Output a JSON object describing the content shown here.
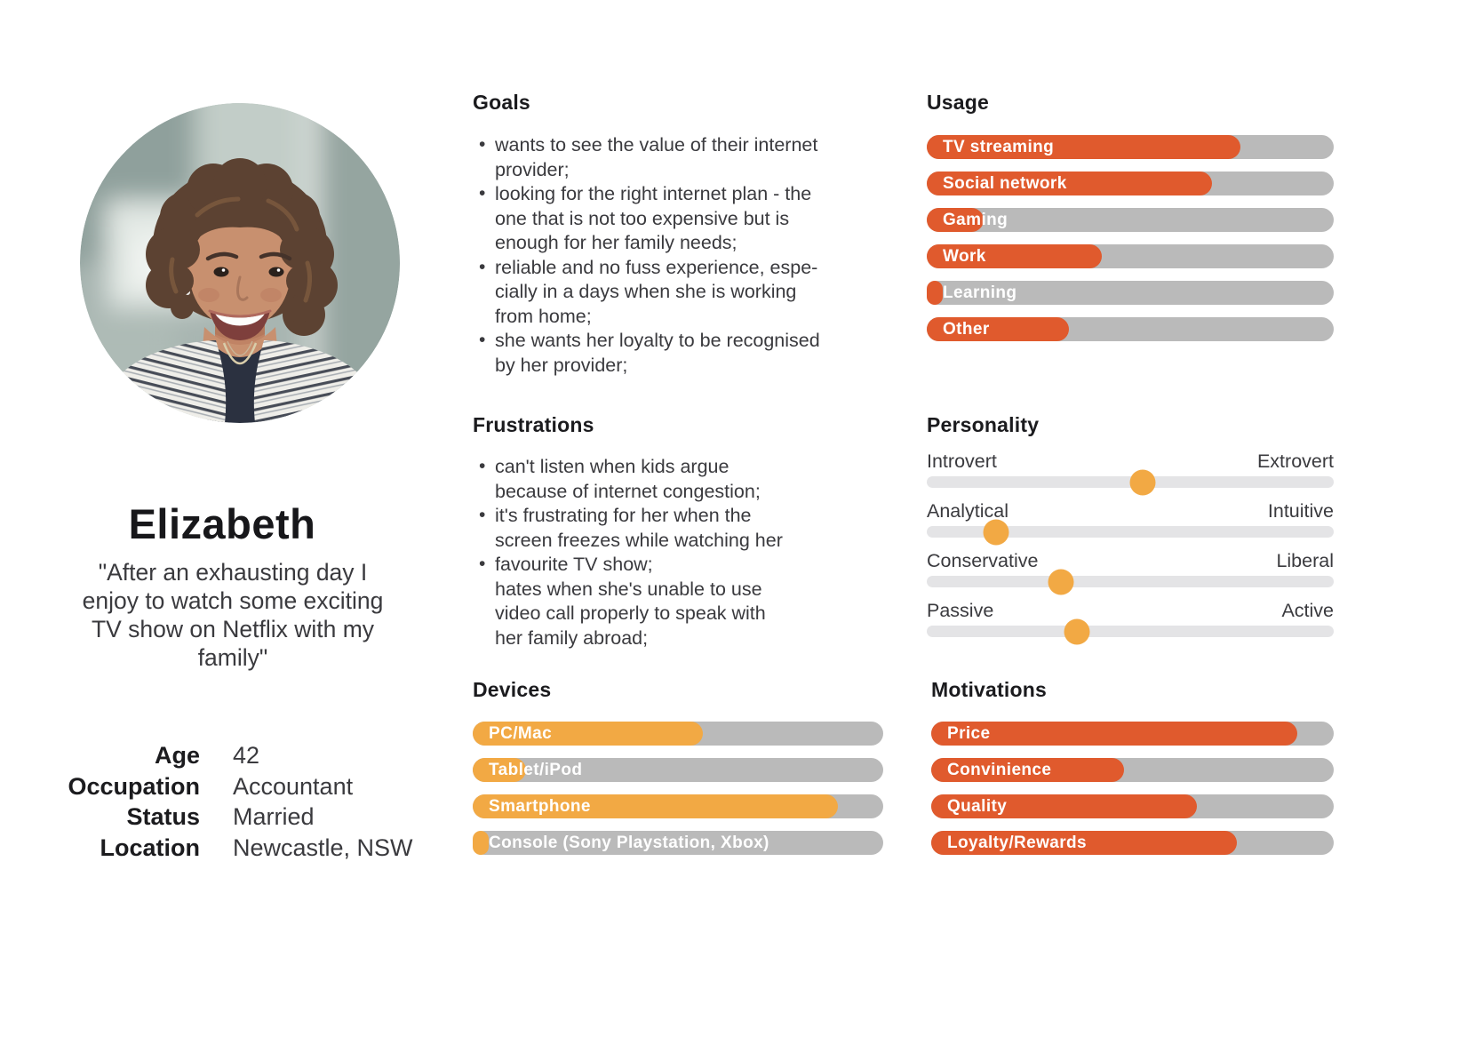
{
  "colors": {
    "accent_orange": "#E05A2D",
    "accent_amber": "#F2A944",
    "bar_track": "#BABABA",
    "slider_track": "#E4E4E6",
    "text": "#333336"
  },
  "persona": {
    "name": "Elizabeth",
    "quote": "\"After an exhausting day I\nenjoy to watch some exciting\nTV show on Netflix with my\nfamily\"",
    "details": [
      {
        "label": "Age",
        "value": "42"
      },
      {
        "label": "Occupation",
        "value": "Accountant"
      },
      {
        "label": "Status",
        "value": "Married"
      },
      {
        "label": "Location",
        "value": "Newcastle, NSW"
      }
    ]
  },
  "goals": {
    "title": "Goals",
    "items": [
      "wants to see the value of their internet\nprovider;",
      "looking for the right internet plan - the\none that is not too expensive but is\nenough for her family needs;",
      "reliable and no fuss experience, espe-\ncially in a days when she is working\nfrom home;",
      "she wants her loyalty to be recognised\nby her provider;"
    ]
  },
  "frustrations": {
    "title": "Frustrations",
    "items": [
      "can't listen when kids argue\nbecause of internet congestion;",
      "it's frustrating for her when the\nscreen freezes while watching her",
      "favourite TV show;\nhates when she's unable to use\nvideo call properly to speak with\nher family abroad;"
    ]
  },
  "usage": {
    "title": "Usage",
    "fill_color": "#E05A2D",
    "bars": [
      {
        "label": "TV streaming",
        "percent": 77
      },
      {
        "label": "Social network",
        "percent": 70
      },
      {
        "label": "Gaming",
        "percent": 14
      },
      {
        "label": "Work",
        "percent": 43
      },
      {
        "label": "Learning",
        "percent": 4
      },
      {
        "label": "Other",
        "percent": 35
      }
    ]
  },
  "devices": {
    "title": "Devices",
    "fill_color": "#F2A944",
    "bars": [
      {
        "label": "PC/Mac",
        "percent": 56
      },
      {
        "label": "Tablet/iPod",
        "percent": 13
      },
      {
        "label": "Smartphone",
        "percent": 89
      },
      {
        "label": "Console (Sony Playstation, Xbox)",
        "percent": 4
      }
    ]
  },
  "motivations": {
    "title": "Motivations",
    "fill_color": "#E05A2D",
    "bars": [
      {
        "label": "Price",
        "percent": 91
      },
      {
        "label": "Convinience",
        "percent": 48
      },
      {
        "label": "Quality",
        "percent": 66
      },
      {
        "label": "Loyalty/Rewards",
        "percent": 76
      }
    ]
  },
  "personality": {
    "title": "Personality",
    "dot_color": "#F2A944",
    "sliders": [
      {
        "left": "Introvert",
        "right": "Extrovert",
        "percent": 53
      },
      {
        "left": "Analytical",
        "right": "Intuitive",
        "percent": 17
      },
      {
        "left": "Conservative",
        "right": "Liberal",
        "percent": 33
      },
      {
        "left": "Passive",
        "right": "Active",
        "percent": 37
      }
    ]
  }
}
